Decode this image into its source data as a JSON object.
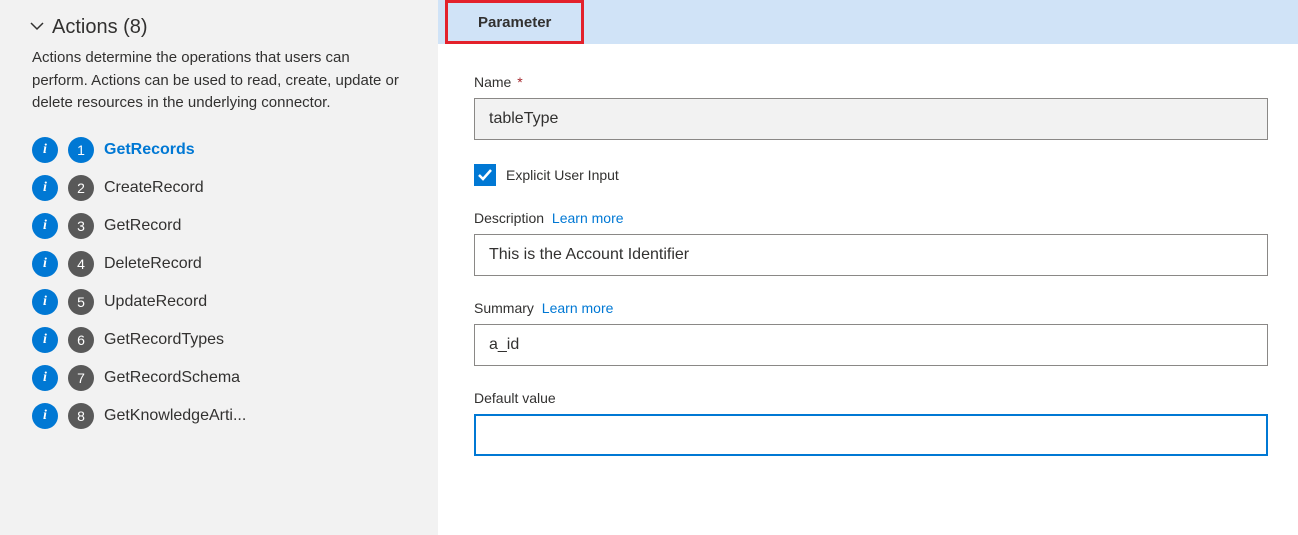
{
  "sidebar": {
    "title": "Actions (8)",
    "description": "Actions determine the operations that users can perform. Actions can be used to read, create, update or delete resources in the underlying connector.",
    "items": [
      {
        "num": "1",
        "label": "GetRecords",
        "active": true
      },
      {
        "num": "2",
        "label": "CreateRecord",
        "active": false
      },
      {
        "num": "3",
        "label": "GetRecord",
        "active": false
      },
      {
        "num": "4",
        "label": "DeleteRecord",
        "active": false
      },
      {
        "num": "5",
        "label": "UpdateRecord",
        "active": false
      },
      {
        "num": "6",
        "label": "GetRecordTypes",
        "active": false
      },
      {
        "num": "7",
        "label": "GetRecordSchema",
        "active": false
      },
      {
        "num": "8",
        "label": "GetKnowledgeArti...",
        "active": false
      }
    ]
  },
  "main": {
    "tab_label": "Parameter",
    "fields": {
      "name_label": "Name",
      "name_value": "tableType",
      "explicit_label": "Explicit User Input",
      "explicit_checked": true,
      "description_label": "Description",
      "description_value": "This is the Account Identifier",
      "summary_label": "Summary",
      "summary_value": "a_id",
      "default_label": "Default value",
      "default_value": "",
      "learn_more": "Learn more"
    }
  },
  "colors": {
    "highlight_border": "#e3212b",
    "primary": "#0078d4",
    "badge_inactive": "#595959",
    "tab_bg": "#d0e3f7",
    "sidebar_bg": "#f2f2f2"
  }
}
